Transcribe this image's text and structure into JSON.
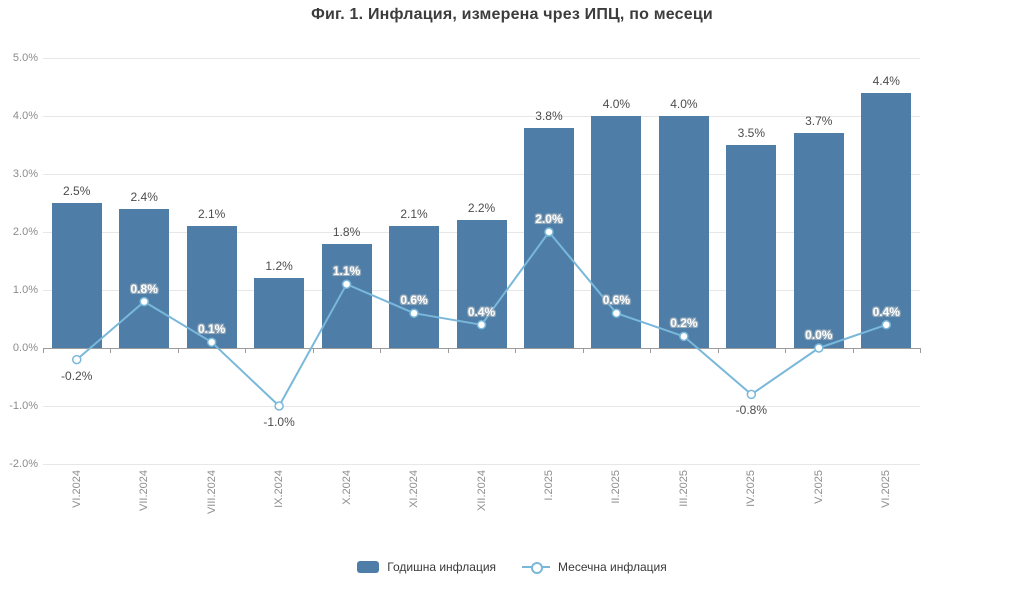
{
  "chart_data": {
    "type": "bar",
    "title": "Фиг. 1. Инфлация, измерена чрез ИПЦ, по месеци",
    "categories": [
      "VI.2024",
      "VII.2024",
      "VIII.2024",
      "IX.2024",
      "X.2024",
      "XI.2024",
      "XII.2024",
      "I.2025",
      "II.2025",
      "III.2025",
      "IV.2025",
      "V.2025",
      "VI.2025"
    ],
    "series": [
      {
        "name": "Годишна инфлация",
        "type": "bar",
        "color": "#4e7ea8",
        "values": [
          2.5,
          2.4,
          2.1,
          1.2,
          1.8,
          2.1,
          2.2,
          3.8,
          4.0,
          4.0,
          3.5,
          3.7,
          4.4
        ],
        "labels": [
          "2.5%",
          "2.4%",
          "2.1%",
          "1.2%",
          "1.8%",
          "2.1%",
          "2.2%",
          "3.8%",
          "4.0%",
          "4.0%",
          "3.5%",
          "3.7%",
          "4.4%"
        ]
      },
      {
        "name": "Месечна инфлация",
        "type": "line",
        "color": "#79b8da",
        "marker_fill": "#ffffff",
        "values": [
          -0.2,
          0.8,
          0.1,
          -1.0,
          1.1,
          0.6,
          0.4,
          2.0,
          0.6,
          0.2,
          -0.8,
          0.0,
          0.4
        ],
        "labels": [
          "-0.2%",
          "0.8%",
          "0.1%",
          "-1.0%",
          "1.1%",
          "0.6%",
          "0.4%",
          "2.0%",
          "0.6%",
          "0.2%",
          "-0.8%",
          "0.0%",
          "0.4%"
        ]
      }
    ],
    "ylim": [
      -2.0,
      5.0
    ],
    "ytick_step": 1.0,
    "ytick_labels": [
      "5.0%",
      "4.0%",
      "3.0%",
      "2.0%",
      "1.0%",
      "0.0%",
      "-1.0%",
      "-2.0%"
    ],
    "grid": true,
    "legend_position": "bottom",
    "xlabel": "",
    "ylabel": ""
  }
}
